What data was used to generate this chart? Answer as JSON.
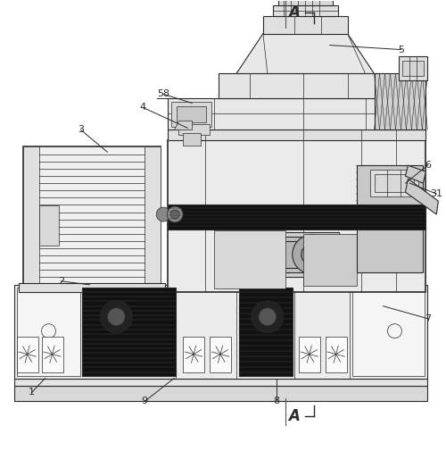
{
  "bg_color": "#ffffff",
  "lc": "#2a2a2a",
  "lc_mid": "#555555",
  "lc_light": "#888888",
  "fc_white": "#f8f8f8",
  "fc_light": "#e8e8e8",
  "fc_mid": "#cccccc",
  "fc_dark": "#999999",
  "fc_black": "#111111",
  "fc_hatch": "#bbbbbb",
  "border": 0.02,
  "figw": 5.0,
  "figh": 5.05,
  "dpi": 100
}
